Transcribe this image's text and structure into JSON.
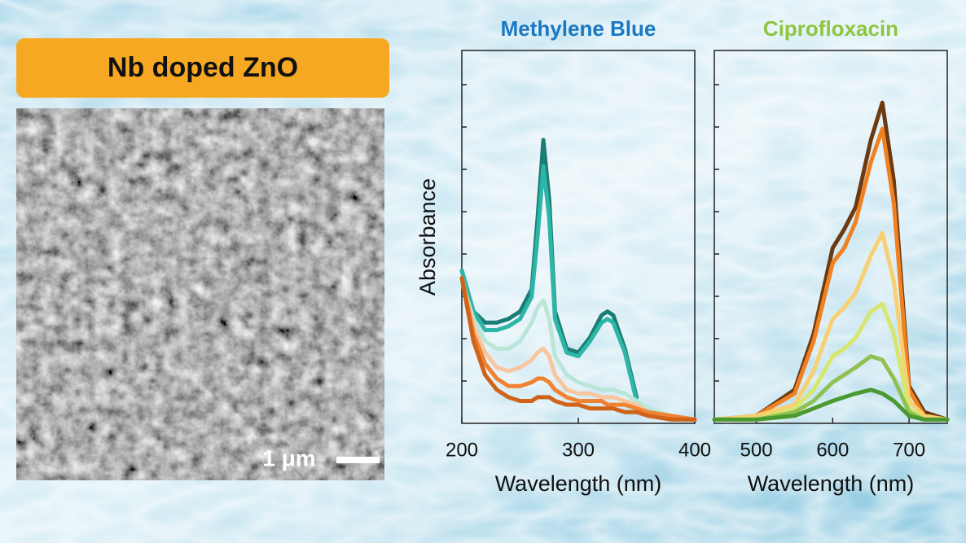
{
  "label": "Nb doped ZnO",
  "scale_bar": "1 μm",
  "chart_data": [
    {
      "type": "line",
      "title": "Methylene Blue",
      "title_color": "#1a78c2",
      "xlabel": "Wavelength (nm)",
      "ylabel": "Absorbance",
      "xlim": [
        200,
        400
      ],
      "xticks": [
        200,
        300,
        400
      ],
      "ylim": [
        0,
        1
      ],
      "x": [
        200,
        210,
        220,
        230,
        240,
        250,
        260,
        265,
        270,
        275,
        280,
        290,
        300,
        310,
        320,
        325,
        330,
        340,
        350,
        360,
        380,
        400
      ],
      "series": [
        {
          "color": "#1b7c74",
          "values": [
            0.41,
            0.3,
            0.27,
            0.27,
            0.28,
            0.3,
            0.36,
            0.55,
            0.76,
            0.6,
            0.3,
            0.2,
            0.19,
            0.23,
            0.29,
            0.3,
            0.29,
            0.2,
            0.07,
            null,
            null,
            null
          ]
        },
        {
          "color": "#2db6a8",
          "values": [
            0.41,
            0.3,
            0.25,
            0.25,
            0.26,
            0.28,
            0.34,
            0.5,
            0.69,
            0.55,
            0.28,
            0.19,
            0.18,
            0.22,
            0.27,
            0.28,
            0.27,
            0.19,
            0.06,
            null,
            null,
            null
          ]
        },
        {
          "color": "#b9e6d6",
          "values": [
            0.38,
            0.28,
            0.22,
            0.2,
            0.2,
            0.22,
            0.27,
            0.31,
            0.33,
            0.28,
            0.18,
            0.13,
            0.11,
            0.1,
            0.09,
            0.09,
            0.09,
            0.08,
            0.06,
            0.04,
            0.02,
            0.01
          ]
        },
        {
          "color": "#f7c69e",
          "values": [
            0.39,
            0.26,
            0.19,
            0.15,
            0.14,
            0.15,
            0.17,
            0.19,
            0.2,
            0.18,
            0.13,
            0.09,
            0.08,
            0.08,
            0.07,
            0.07,
            0.07,
            0.06,
            0.05,
            0.03,
            0.02,
            0.01
          ]
        },
        {
          "color": "#f08232",
          "values": [
            0.39,
            0.24,
            0.16,
            0.12,
            0.1,
            0.1,
            0.11,
            0.12,
            0.12,
            0.11,
            0.09,
            0.07,
            0.06,
            0.06,
            0.06,
            0.05,
            0.05,
            0.05,
            0.04,
            0.03,
            0.02,
            0.01
          ]
        },
        {
          "color": "#d0621a",
          "values": [
            0.39,
            0.22,
            0.13,
            0.09,
            0.07,
            0.06,
            0.06,
            0.07,
            0.07,
            0.07,
            0.06,
            0.05,
            0.05,
            0.04,
            0.04,
            0.04,
            0.04,
            0.03,
            0.03,
            0.02,
            0.01,
            0.01
          ]
        }
      ]
    },
    {
      "type": "line",
      "title": "Ciprofloxacin",
      "title_color": "#8cc63f",
      "xlabel": "Wavelength (nm)",
      "xlim": [
        445,
        750
      ],
      "xticks": [
        500,
        600,
        700
      ],
      "ylim": [
        0,
        1
      ],
      "x": [
        445,
        500,
        550,
        575,
        600,
        615,
        630,
        650,
        665,
        680,
        700,
        720,
        750
      ],
      "series": [
        {
          "color": "#6b3a12",
          "values": [
            0.01,
            0.02,
            0.09,
            0.24,
            0.47,
            0.52,
            0.58,
            0.76,
            0.86,
            0.65,
            0.1,
            0.03,
            0.01
          ]
        },
        {
          "color": "#f08020",
          "values": [
            0.01,
            0.02,
            0.08,
            0.22,
            0.43,
            0.47,
            0.54,
            0.7,
            0.79,
            0.59,
            0.09,
            0.02,
            0.01
          ]
        },
        {
          "color": "#f8d070",
          "values": [
            0.01,
            0.02,
            0.05,
            0.14,
            0.28,
            0.31,
            0.35,
            0.45,
            0.51,
            0.38,
            0.06,
            0.02,
            0.01
          ]
        },
        {
          "color": "#d6e66e",
          "values": [
            0.01,
            0.01,
            0.04,
            0.09,
            0.18,
            0.2,
            0.23,
            0.3,
            0.32,
            0.24,
            0.04,
            0.01,
            0.01
          ]
        },
        {
          "color": "#8fc052",
          "values": [
            0.01,
            0.01,
            0.03,
            0.06,
            0.11,
            0.13,
            0.15,
            0.18,
            0.17,
            0.12,
            0.03,
            0.01,
            0.01
          ]
        },
        {
          "color": "#4a9a30",
          "values": [
            0.01,
            0.01,
            0.02,
            0.04,
            0.06,
            0.07,
            0.08,
            0.09,
            0.08,
            0.06,
            0.02,
            0.01,
            0.01
          ]
        }
      ]
    }
  ]
}
